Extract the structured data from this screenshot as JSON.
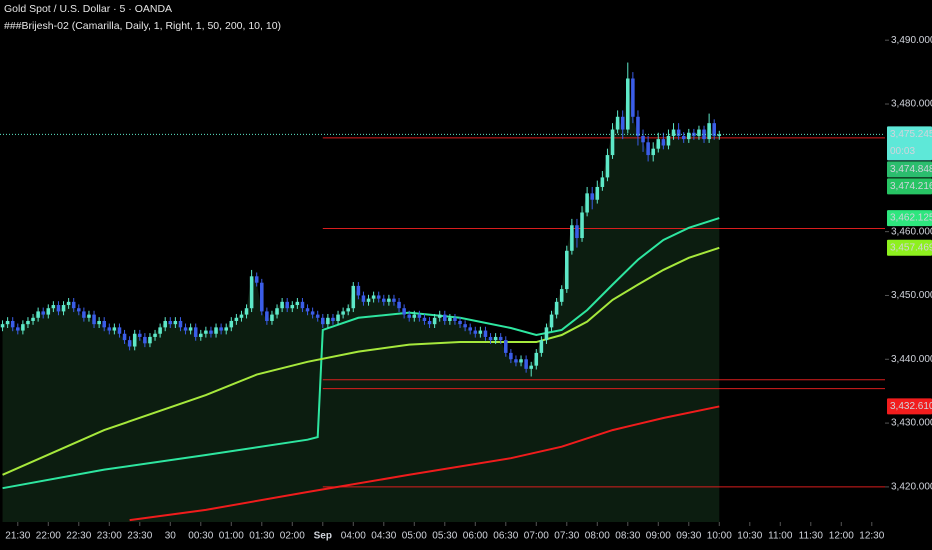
{
  "chart_data": {
    "type": "candlestick",
    "title": "Gold Spot / U.S. Dollar · 5 · OANDA",
    "subtitle": "###Brijesh-02 (Camarilla, Daily, 1, Right, 1, 50, 200, 10, 10)",
    "up_color": "#5ee8c8",
    "down_color": "#3b5de7",
    "area_color": "#0c1d10",
    "open": [
      3445,
      3445.5,
      3446,
      3445,
      3444.5,
      3445.5,
      3446,
      3446.5,
      3447.5,
      3447,
      3448,
      3448.5,
      3447.5,
      3448.5,
      3449,
      3448,
      3447.5,
      3446.5,
      3447,
      3445.5,
      3446,
      3445,
      3444.5,
      3445,
      3444,
      3443,
      3442,
      3444,
      3443.5,
      3442.5,
      3443.5,
      3444,
      3445,
      3446,
      3445.5,
      3446,
      3445,
      3444.5,
      3445,
      3443.5,
      3444,
      3444.5,
      3444,
      3445,
      3444.5,
      3445,
      3446,
      3446.5,
      3447,
      3448,
      3453,
      3452,
      3447.5,
      3446,
      3447,
      3448,
      3449,
      3448,
      3448.5,
      3449,
      3448,
      3447.5,
      3447,
      3446.5,
      3445.5,
      3446.5,
      3446,
      3447,
      3447.5,
      3448,
      3451.5,
      3450,
      3449,
      3449.5,
      3450,
      3449.5,
      3449,
      3449.5,
      3449,
      3448,
      3447,
      3446.5,
      3447,
      3446.5,
      3446,
      3445.5,
      3446.5,
      3447,
      3446,
      3446.5,
      3446,
      3445.5,
      3445,
      3444.5,
      3444,
      3444.5,
      3443.5,
      3443,
      3443.5,
      3443,
      3441,
      3440,
      3439.5,
      3440,
      3438.5,
      3439,
      3441,
      3443,
      3445,
      3447,
      3449,
      3451,
      3457,
      3461,
      3459,
      3463,
      3466,
      3465,
      3467,
      3468.5,
      3472,
      3476,
      3478,
      3476,
      3484,
      3478,
      3475,
      3474,
      3472,
      3473,
      3474.5,
      3473.5,
      3475,
      3476,
      3475,
      3474.5,
      3475.5,
      3475,
      3476,
      3474.5,
      3477,
      3475
    ],
    "high": [
      3446.1,
      3446.6,
      3446.6,
      3445.6,
      3446.1,
      3446.6,
      3447.1,
      3448.1,
      3448.1,
      3448.6,
      3449.1,
      3449.1,
      3449.1,
      3449.6,
      3449.6,
      3448.6,
      3448.1,
      3447.6,
      3447.6,
      3446.6,
      3446.6,
      3445.6,
      3445.6,
      3445.6,
      3444.6,
      3443.6,
      3444.6,
      3444.6,
      3444.1,
      3444.1,
      3444.6,
      3445.6,
      3446.6,
      3446.6,
      3446.6,
      3446.6,
      3445.6,
      3445.6,
      3445.6,
      3444.6,
      3445.1,
      3445.1,
      3445.6,
      3445.6,
      3445.6,
      3446.6,
      3447.1,
      3447.6,
      3448.6,
      3454,
      3453.6,
      3452.6,
      3448.1,
      3447.6,
      3448.6,
      3449.6,
      3449.6,
      3449.1,
      3449.6,
      3449.6,
      3448.6,
      3448.1,
      3447.6,
      3447.1,
      3447.1,
      3447.1,
      3447.6,
      3448.1,
      3448.6,
      3452.1,
      3452.1,
      3450.6,
      3450.1,
      3450.6,
      3450.6,
      3450.1,
      3450.1,
      3450.1,
      3449.6,
      3448.6,
      3447.6,
      3447.6,
      3447.6,
      3447.1,
      3446.6,
      3447.1,
      3447.6,
      3447.6,
      3447.1,
      3447.1,
      3446.6,
      3446.1,
      3445.6,
      3445.1,
      3445.1,
      3445.1,
      3444.1,
      3444.1,
      3444.1,
      3443.6,
      3441.6,
      3440.6,
      3440.6,
      3440.6,
      3439.6,
      3441.6,
      3443.6,
      3445.6,
      3447.6,
      3449.6,
      3451.6,
      3457.8,
      3462,
      3462,
      3464,
      3467,
      3467,
      3468,
      3469.5,
      3473,
      3477,
      3479,
      3479,
      3486.5,
      3485,
      3479,
      3476,
      3475,
      3474,
      3475.5,
      3475.5,
      3476,
      3477,
      3477,
      3475.6,
      3476.1,
      3476.1,
      3476.6,
      3476.6,
      3478.5,
      3477.6,
      3475.8
    ],
    "low": [
      3444.4,
      3444.9,
      3444.4,
      3443.9,
      3443.9,
      3444.9,
      3445.4,
      3445.9,
      3446.4,
      3446.4,
      3447.4,
      3446.9,
      3446.9,
      3447.9,
      3447.4,
      3446.9,
      3445.9,
      3445.9,
      3444.9,
      3444.9,
      3444.4,
      3443.9,
      3443.9,
      3443.4,
      3442.4,
      3441.4,
      3441.4,
      3442.9,
      3441.9,
      3441.9,
      3442.9,
      3443.4,
      3444.4,
      3444.9,
      3444.9,
      3444.4,
      3443.9,
      3443.9,
      3442.9,
      3442.9,
      3443.4,
      3443.4,
      3443.4,
      3443.9,
      3443.9,
      3444.4,
      3445.4,
      3445.9,
      3446.4,
      3447.4,
      3451.4,
      3446.9,
      3445.4,
      3445.4,
      3446.4,
      3447.4,
      3447.4,
      3447.4,
      3447.9,
      3447.4,
      3446.9,
      3446.4,
      3445.9,
      3444.9,
      3444.9,
      3445.4,
      3445.4,
      3446.4,
      3446.9,
      3447.4,
      3449.4,
      3448.4,
      3448.4,
      3448.9,
      3448.9,
      3448.4,
      3448.4,
      3448.4,
      3447.4,
      3446.4,
      3445.9,
      3445.9,
      3445.9,
      3445.4,
      3444.9,
      3444.9,
      3445.9,
      3445.4,
      3445.4,
      3445.4,
      3444.9,
      3444.4,
      3443.9,
      3443.4,
      3443.4,
      3442.9,
      3442.4,
      3442.4,
      3442.4,
      3440.4,
      3439.4,
      3438.9,
      3438.9,
      3437.9,
      3437.3,
      3438.4,
      3440.4,
      3442.4,
      3444.4,
      3446.4,
      3448.4,
      3450.4,
      3456.4,
      3457.5,
      3458.4,
      3462.4,
      3463.5,
      3464.4,
      3466.4,
      3467.9,
      3471.4,
      3475.4,
      3474.5,
      3475.4,
      3477,
      3473.5,
      3472.5,
      3471,
      3471,
      3472.4,
      3472.9,
      3472.9,
      3474.4,
      3474.4,
      3473.9,
      3473.9,
      3474.4,
      3474.4,
      3473.9,
      3473.9,
      3474.4,
      3474.4
    ],
    "close": [
      3445.5,
      3446,
      3445,
      3444.5,
      3445.5,
      3446,
      3446.5,
      3447.5,
      3447,
      3448,
      3448.5,
      3447.5,
      3448.5,
      3449,
      3448,
      3447.5,
      3446.5,
      3447,
      3445.5,
      3446,
      3445,
      3444.5,
      3445,
      3444,
      3443,
      3442,
      3444,
      3443.5,
      3442.5,
      3443.5,
      3444,
      3445,
      3446,
      3445.5,
      3446,
      3445,
      3444.5,
      3445,
      3443.5,
      3444,
      3444.5,
      3444,
      3445,
      3444.5,
      3445,
      3446,
      3446.5,
      3447,
      3448,
      3453,
      3452,
      3447.5,
      3446,
      3447,
      3448,
      3449,
      3448,
      3448.5,
      3449,
      3448,
      3447.5,
      3447,
      3446.5,
      3445.5,
      3446.5,
      3446,
      3447,
      3447.5,
      3448,
      3451.5,
      3450,
      3449,
      3449.5,
      3450,
      3449.5,
      3449,
      3449.5,
      3449,
      3448,
      3447,
      3446.5,
      3447,
      3446.5,
      3446,
      3445.5,
      3446.5,
      3447,
      3446,
      3446.5,
      3446,
      3445.5,
      3445,
      3444.5,
      3444,
      3444.5,
      3443.5,
      3443,
      3443.5,
      3443,
      3441,
      3440,
      3439.5,
      3440,
      3438.5,
      3439,
      3441,
      3443,
      3445,
      3447,
      3449,
      3451,
      3457,
      3461,
      3459,
      3463,
      3466,
      3465,
      3467,
      3468.5,
      3472,
      3476,
      3478,
      3476,
      3484,
      3478,
      3475,
      3474,
      3472,
      3473,
      3474.5,
      3473.5,
      3475,
      3476,
      3475,
      3474.5,
      3475.5,
      3475,
      3476,
      3474.5,
      3477,
      3475,
      3475.245
    ],
    "xlim": [
      -0.5,
      173.6
    ],
    "ylim": [
      3414.5,
      3496.3
    ],
    "xticks": [
      {
        "value": 3,
        "label": "21:30"
      },
      {
        "value": 9,
        "label": "22:00"
      },
      {
        "value": 15,
        "label": "22:30"
      },
      {
        "value": 21,
        "label": "23:00"
      },
      {
        "value": 27,
        "label": "23:30"
      },
      {
        "value": 33,
        "label": "30"
      },
      {
        "value": 39,
        "label": "00:30"
      },
      {
        "value": 45,
        "label": "01:00"
      },
      {
        "value": 51,
        "label": "01:30"
      },
      {
        "value": 57,
        "label": "02:00"
      },
      {
        "value": 63,
        "label": "Sep"
      },
      {
        "value": 69,
        "label": "04:00"
      },
      {
        "value": 75,
        "label": "04:30"
      },
      {
        "value": 81,
        "label": "05:00"
      },
      {
        "value": 87,
        "label": "05:30"
      },
      {
        "value": 93,
        "label": "06:00"
      },
      {
        "value": 99,
        "label": "06:30"
      },
      {
        "value": 105,
        "label": "07:00"
      },
      {
        "value": 111,
        "label": "07:30"
      },
      {
        "value": 117,
        "label": "08:00"
      },
      {
        "value": 123,
        "label": "08:30"
      },
      {
        "value": 129,
        "label": "09:00"
      },
      {
        "value": 135,
        "label": "09:30"
      },
      {
        "value": 141,
        "label": "10:00"
      },
      {
        "value": 147,
        "label": "10:30"
      },
      {
        "value": 153,
        "label": "11:00"
      },
      {
        "value": 159,
        "label": "11:30"
      },
      {
        "value": 165,
        "label": "12:00"
      },
      {
        "value": 171,
        "label": "12:30"
      }
    ],
    "yticks": [
      {
        "value": 3420,
        "label": "3,420.000"
      },
      {
        "value": 3430,
        "label": "3,430.000"
      },
      {
        "value": 3440,
        "label": "3,440.000"
      },
      {
        "value": 3450,
        "label": "3,450.000"
      },
      {
        "value": 3460,
        "label": "3,460.000"
      },
      {
        "value": 3480,
        "label": "3,480.000"
      },
      {
        "value": 3490,
        "label": "3,490.000"
      }
    ],
    "lines": [
      {
        "color": "#2ee6a0",
        "x": [
          0,
          20,
          40,
          60,
          62,
          63,
          70,
          80,
          90,
          100,
          105,
          110,
          115,
          120,
          125,
          130,
          135,
          141
        ],
        "values": [
          3419.8,
          3422.7,
          3425,
          3427.4,
          3427.8,
          3444.6,
          3446.5,
          3447.3,
          3446.5,
          3444.9,
          3443.8,
          3444.6,
          3447.7,
          3451.7,
          3455.6,
          3458.7,
          3460.6,
          3462.125
        ]
      },
      {
        "color": "#a6e83c",
        "x": [
          0,
          20,
          40,
          50,
          60,
          70,
          80,
          90,
          100,
          105,
          110,
          115,
          120,
          125,
          130,
          135,
          141
        ],
        "values": [
          3421.9,
          3428.9,
          3434.4,
          3437.6,
          3439.6,
          3441.2,
          3442.3,
          3442.7,
          3442.7,
          3442.7,
          3443.8,
          3445.9,
          3449.3,
          3451.7,
          3454,
          3455.9,
          3457.469
        ]
      },
      {
        "color": "#ef1c1c",
        "x": [
          25,
          40,
          60,
          80,
          100,
          110,
          120,
          130,
          141
        ],
        "values": [
          3414.8,
          3416.4,
          3419.2,
          3421.9,
          3424.5,
          3426.3,
          3428.9,
          3430.8,
          3432.61
        ]
      }
    ],
    "levels": {
      "color": "#d81e1e",
      "start": 63,
      "values": [
        3474.7,
        3460.5,
        3436.8,
        3435.4,
        3420
      ]
    },
    "last_price_color": "#5ee8c8",
    "countdown": "00:03",
    "price_labels": [
      {
        "value": 3475.245,
        "label": "3,475.245",
        "color": "#5ee8d8",
        "text_color": "#000000"
      },
      {
        "value": 3474.848,
        "label": "3,474.848",
        "color": "#2bbd6e",
        "text_color": "#000000"
      },
      {
        "value": 3474.216,
        "label": "3,474.216",
        "color": "#27c464",
        "text_color": "#000000"
      },
      {
        "value": 3462.125,
        "label": "3,462.125",
        "color": "#2ee67e",
        "text_color": "#000000"
      },
      {
        "value": 3457.469,
        "label": "3,457.469",
        "color": "#8ef01e",
        "text_color": "#000000"
      },
      {
        "value": 3432.61,
        "label": "3,432.610",
        "color": "#f21d1d",
        "text_color": "#ffffff"
      }
    ]
  }
}
